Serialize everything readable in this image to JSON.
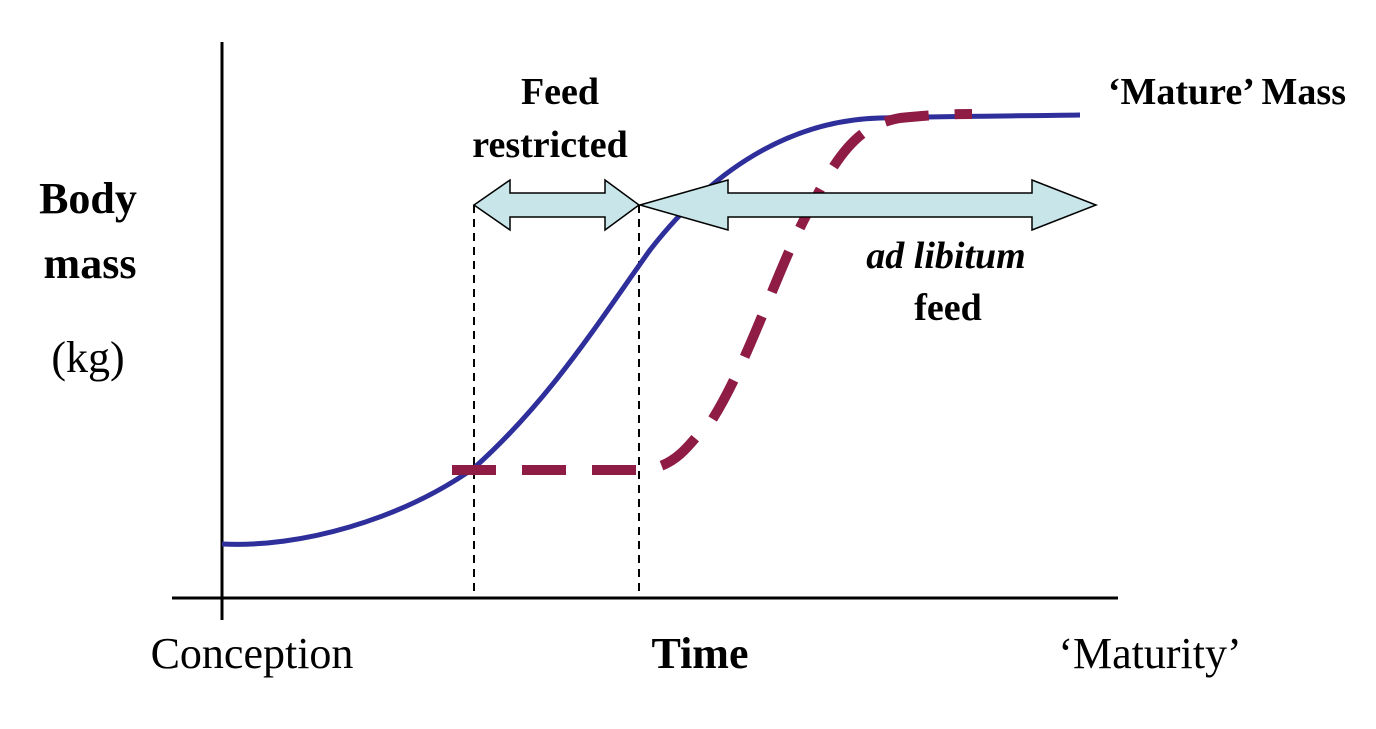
{
  "labels": {
    "y_axis_line1": "Body",
    "y_axis_line2": "mass",
    "y_axis_unit": "(kg)",
    "x_start": "Conception",
    "x_title": "Time",
    "x_end": "‘Maturity’",
    "mature_mass": "‘Mature’ Mass",
    "feed_restricted_line1": "Feed",
    "feed_restricted_line2": "restricted",
    "ad_libitum_line1": "ad libitum",
    "ad_libitum_line2": "feed"
  },
  "colors": {
    "normal_growth_curve": "#2e2f9a",
    "compensatory_growth_curve": "#8e1c45",
    "arrow_fill": "#c8e6ea",
    "axis": "#000000"
  }
}
